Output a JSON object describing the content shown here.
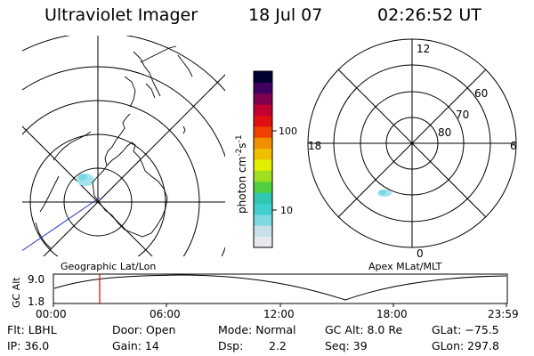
{
  "header": {
    "instrument": "Ultraviolet Imager",
    "date": "18 Jul 07",
    "time": "02:26:52 UT"
  },
  "colorbar": {
    "unit_label": "photon cm",
    "unit_sup1": "-2",
    "unit_mid": "s",
    "unit_sup2": "-1",
    "tick_100": "100",
    "tick_10": "10",
    "colors": [
      "#e8e8ee",
      "#c8e0e8",
      "#7fd8e0",
      "#40d0d0",
      "#30c8b0",
      "#50d040",
      "#a0e020",
      "#e0f000",
      "#f0c000",
      "#f09000",
      "#f04000",
      "#e01010",
      "#c00030",
      "#800050",
      "#400060",
      "#000030"
    ]
  },
  "left_panel": {
    "caption": "Geographic Lat/Lon"
  },
  "right_panel": {
    "caption": "Apex MLat/MLT",
    "mlt_12": "12",
    "mlt_18": "18",
    "mlt_6": "6",
    "mlt_0": "0",
    "lat_60": "60",
    "lat_70": "70",
    "lat_80": "80"
  },
  "altitude_strip": {
    "ylabel": "GC Alt",
    "y_max": "9.0",
    "y_min": "1.8",
    "x_ticks": [
      "00:00",
      "06:00",
      "12:00",
      "18:00",
      "23:59"
    ],
    "marker_color": "#e00000"
  },
  "info": {
    "flt": "Flt: LBHL",
    "ip": "IP: 36.0",
    "door": "Door: Open",
    "gain": "Gain: 14",
    "mode": "Mode: Normal",
    "dsp_label": "Dsp:",
    "dsp_value": "2.2",
    "gc_alt": "GC Alt: 8.0 Re",
    "seq": "Seq: 39",
    "glat": "GLat: −75.5",
    "glon": "GLon: 297.8"
  }
}
